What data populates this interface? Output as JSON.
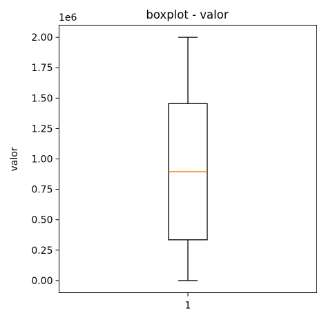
{
  "chart_data": {
    "type": "boxplot",
    "title": "boxplot - valor",
    "ylabel": "valor",
    "xlabel": "",
    "y_offset_label": "1e6",
    "ylim": [
      -0.1,
      2.1
    ],
    "yticks": [
      0.0,
      0.25,
      0.5,
      0.75,
      1.0,
      1.25,
      1.5,
      1.75,
      2.0
    ],
    "ytick_labels": [
      "0.00",
      "0.25",
      "0.50",
      "0.75",
      "1.00",
      "1.25",
      "1.50",
      "1.75",
      "2.00"
    ],
    "categories": [
      "1"
    ],
    "boxes": [
      {
        "category": "1",
        "whisker_low": 0.0,
        "q1": 0.335,
        "median": 0.895,
        "q3": 1.455,
        "whisker_high": 2.0
      }
    ],
    "colors": {
      "box": "#000000",
      "median": "#ff7f0e"
    },
    "grid": false
  }
}
